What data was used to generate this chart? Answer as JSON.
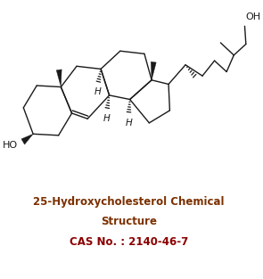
{
  "title_line1": "25-Hydroxycholesterol Chemical",
  "title_line2": "Structure",
  "cas_label": "CAS No. : 2140-46-7",
  "title_color": "#7B3000",
  "cas_color": "#8B0000",
  "bg_color": "#ffffff",
  "title_fontsize": 8.5,
  "cas_fontsize": 8.5,
  "bond_color": "#1a1a1a",
  "label_color": "#1a1a1a"
}
